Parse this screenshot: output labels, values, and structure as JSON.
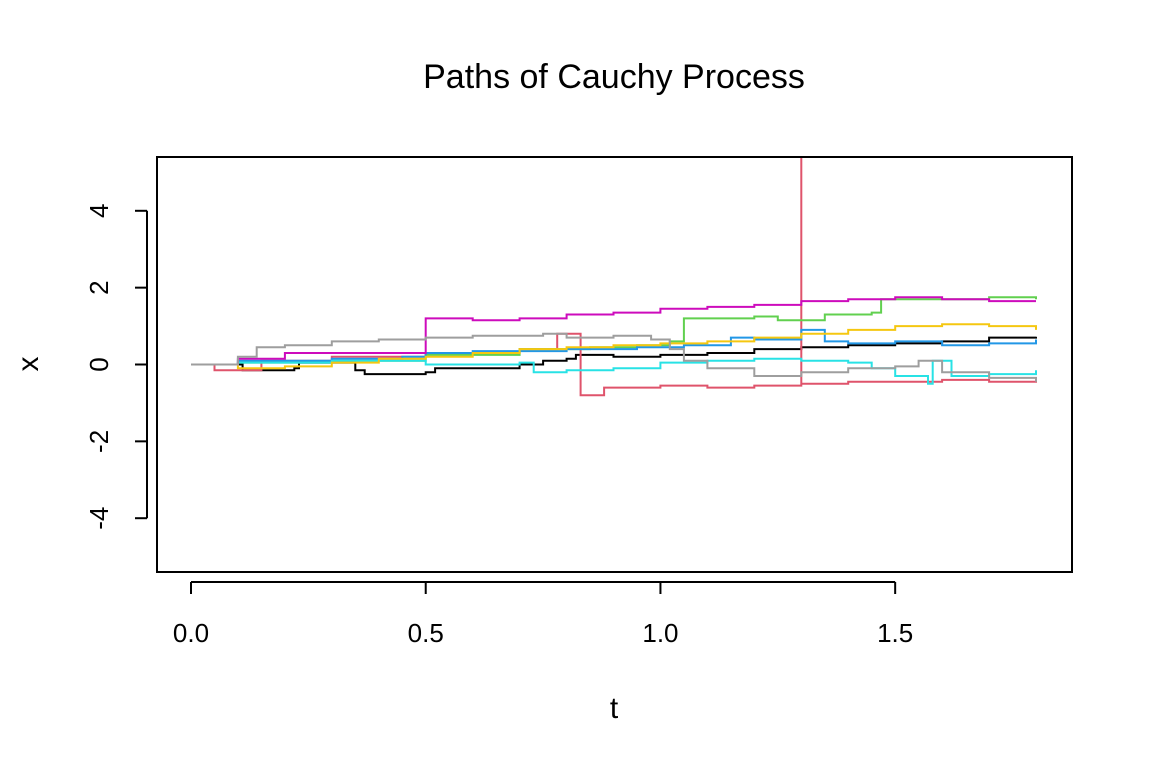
{
  "chart_data": {
    "type": "line",
    "title": "Paths of Cauchy Process",
    "xlabel": "t",
    "ylabel": "x",
    "xlim": [
      0.0,
      1.8
    ],
    "ylim": [
      -5.4,
      5.4
    ],
    "x_ticks": [
      "0.0",
      "0.5",
      "1.0",
      "1.5"
    ],
    "y_ticks": [
      "-4",
      "-2",
      "0",
      "2",
      "4"
    ],
    "grid": false,
    "legend": "none",
    "step": true,
    "series": [
      {
        "color": "#000000",
        "points": [
          [
            0,
            0
          ],
          [
            0.1,
            0
          ],
          [
            0.11,
            -0.15
          ],
          [
            0.22,
            -0.1
          ],
          [
            0.23,
            0.05
          ],
          [
            0.35,
            -0.15
          ],
          [
            0.37,
            -0.25
          ],
          [
            0.5,
            -0.2
          ],
          [
            0.52,
            -0.1
          ],
          [
            0.7,
            0.0
          ],
          [
            0.75,
            0.1
          ],
          [
            0.8,
            0.15
          ],
          [
            0.82,
            0.25
          ],
          [
            0.9,
            0.2
          ],
          [
            1.0,
            0.25
          ],
          [
            1.1,
            0.3
          ],
          [
            1.2,
            0.4
          ],
          [
            1.3,
            0.45
          ],
          [
            1.4,
            0.5
          ],
          [
            1.5,
            0.55
          ],
          [
            1.6,
            0.6
          ],
          [
            1.7,
            0.7
          ],
          [
            1.8,
            0.72
          ]
        ]
      },
      {
        "color": "#DF536B",
        "points": [
          [
            0,
            0
          ],
          [
            0.05,
            -0.15
          ],
          [
            0.15,
            0.1
          ],
          [
            0.3,
            0.2
          ],
          [
            0.5,
            0.3
          ],
          [
            0.7,
            0.4
          ],
          [
            0.78,
            0.8
          ],
          [
            0.83,
            -0.8
          ],
          [
            0.88,
            -0.6
          ],
          [
            1.0,
            -0.55
          ],
          [
            1.1,
            -0.6
          ],
          [
            1.2,
            -0.55
          ],
          [
            1.3,
            -0.5
          ],
          [
            1.3,
            5.4
          ],
          [
            1.3,
            -0.5
          ],
          [
            1.4,
            -0.45
          ],
          [
            1.5,
            -0.45
          ],
          [
            1.6,
            -0.4
          ],
          [
            1.7,
            -0.45
          ],
          [
            1.8,
            -0.4
          ]
        ]
      },
      {
        "color": "#61D04F",
        "points": [
          [
            0,
            0
          ],
          [
            0.1,
            0.05
          ],
          [
            0.3,
            0.1
          ],
          [
            0.5,
            0.25
          ],
          [
            0.7,
            0.4
          ],
          [
            0.85,
            0.45
          ],
          [
            0.95,
            0.5
          ],
          [
            1.02,
            0.6
          ],
          [
            1.05,
            1.2
          ],
          [
            1.2,
            1.25
          ],
          [
            1.25,
            1.15
          ],
          [
            1.35,
            1.3
          ],
          [
            1.45,
            1.35
          ],
          [
            1.47,
            1.7
          ],
          [
            1.6,
            1.7
          ],
          [
            1.7,
            1.75
          ],
          [
            1.8,
            1.7
          ]
        ]
      },
      {
        "color": "#2297E6",
        "points": [
          [
            0,
            0
          ],
          [
            0.1,
            0.1
          ],
          [
            0.3,
            0.15
          ],
          [
            0.45,
            0.2
          ],
          [
            0.5,
            0.3
          ],
          [
            0.6,
            0.35
          ],
          [
            0.8,
            0.4
          ],
          [
            0.95,
            0.45
          ],
          [
            1.05,
            0.5
          ],
          [
            1.15,
            0.7
          ],
          [
            1.2,
            0.65
          ],
          [
            1.3,
            0.9
          ],
          [
            1.35,
            0.6
          ],
          [
            1.4,
            0.55
          ],
          [
            1.5,
            0.6
          ],
          [
            1.6,
            0.5
          ],
          [
            1.7,
            0.55
          ],
          [
            1.8,
            0.65
          ]
        ]
      },
      {
        "color": "#28E2E5",
        "points": [
          [
            0,
            0
          ],
          [
            0.1,
            0.05
          ],
          [
            0.3,
            0.1
          ],
          [
            0.5,
            0.0
          ],
          [
            0.7,
            0.05
          ],
          [
            0.73,
            -0.2
          ],
          [
            0.8,
            -0.15
          ],
          [
            0.9,
            -0.1
          ],
          [
            1.0,
            0.05
          ],
          [
            1.1,
            0.1
          ],
          [
            1.2,
            0.15
          ],
          [
            1.3,
            0.1
          ],
          [
            1.4,
            0.05
          ],
          [
            1.45,
            -0.1
          ],
          [
            1.5,
            -0.3
          ],
          [
            1.57,
            -0.5
          ],
          [
            1.58,
            0.1
          ],
          [
            1.62,
            -0.3
          ],
          [
            1.7,
            -0.25
          ],
          [
            1.8,
            -0.15
          ]
        ]
      },
      {
        "color": "#CD0BBC",
        "points": [
          [
            0,
            0
          ],
          [
            0.1,
            0.15
          ],
          [
            0.2,
            0.3
          ],
          [
            0.3,
            0.3
          ],
          [
            0.4,
            0.3
          ],
          [
            0.49,
            0.3
          ],
          [
            0.5,
            1.2
          ],
          [
            0.6,
            1.15
          ],
          [
            0.7,
            1.2
          ],
          [
            0.8,
            1.3
          ],
          [
            0.9,
            1.35
          ],
          [
            1.0,
            1.45
          ],
          [
            1.1,
            1.5
          ],
          [
            1.2,
            1.55
          ],
          [
            1.3,
            1.65
          ],
          [
            1.4,
            1.7
          ],
          [
            1.5,
            1.75
          ],
          [
            1.6,
            1.7
          ],
          [
            1.7,
            1.65
          ],
          [
            1.8,
            1.65
          ]
        ]
      },
      {
        "color": "#F5C710",
        "points": [
          [
            0,
            0
          ],
          [
            0.1,
            -0.1
          ],
          [
            0.2,
            -0.05
          ],
          [
            0.3,
            0.05
          ],
          [
            0.4,
            0.15
          ],
          [
            0.5,
            0.2
          ],
          [
            0.6,
            0.3
          ],
          [
            0.7,
            0.4
          ],
          [
            0.8,
            0.45
          ],
          [
            0.9,
            0.5
          ],
          [
            1.0,
            0.55
          ],
          [
            1.1,
            0.6
          ],
          [
            1.2,
            0.7
          ],
          [
            1.3,
            0.8
          ],
          [
            1.4,
            0.9
          ],
          [
            1.5,
            1.0
          ],
          [
            1.6,
            1.05
          ],
          [
            1.7,
            1.0
          ],
          [
            1.8,
            0.9
          ]
        ]
      },
      {
        "color": "#9E9E9E",
        "points": [
          [
            0,
            0
          ],
          [
            0.1,
            0.2
          ],
          [
            0.14,
            0.45
          ],
          [
            0.2,
            0.5
          ],
          [
            0.3,
            0.6
          ],
          [
            0.4,
            0.65
          ],
          [
            0.5,
            0.7
          ],
          [
            0.6,
            0.75
          ],
          [
            0.7,
            0.75
          ],
          [
            0.75,
            0.8
          ],
          [
            0.8,
            0.7
          ],
          [
            0.9,
            0.75
          ],
          [
            0.98,
            0.65
          ],
          [
            1.02,
            0.4
          ],
          [
            1.05,
            0.1
          ],
          [
            1.1,
            -0.1
          ],
          [
            1.2,
            -0.3
          ],
          [
            1.3,
            -0.2
          ],
          [
            1.4,
            -0.1
          ],
          [
            1.5,
            -0.05
          ],
          [
            1.55,
            0.1
          ],
          [
            1.6,
            -0.2
          ],
          [
            1.7,
            -0.35
          ],
          [
            1.8,
            -0.45
          ]
        ]
      }
    ]
  }
}
